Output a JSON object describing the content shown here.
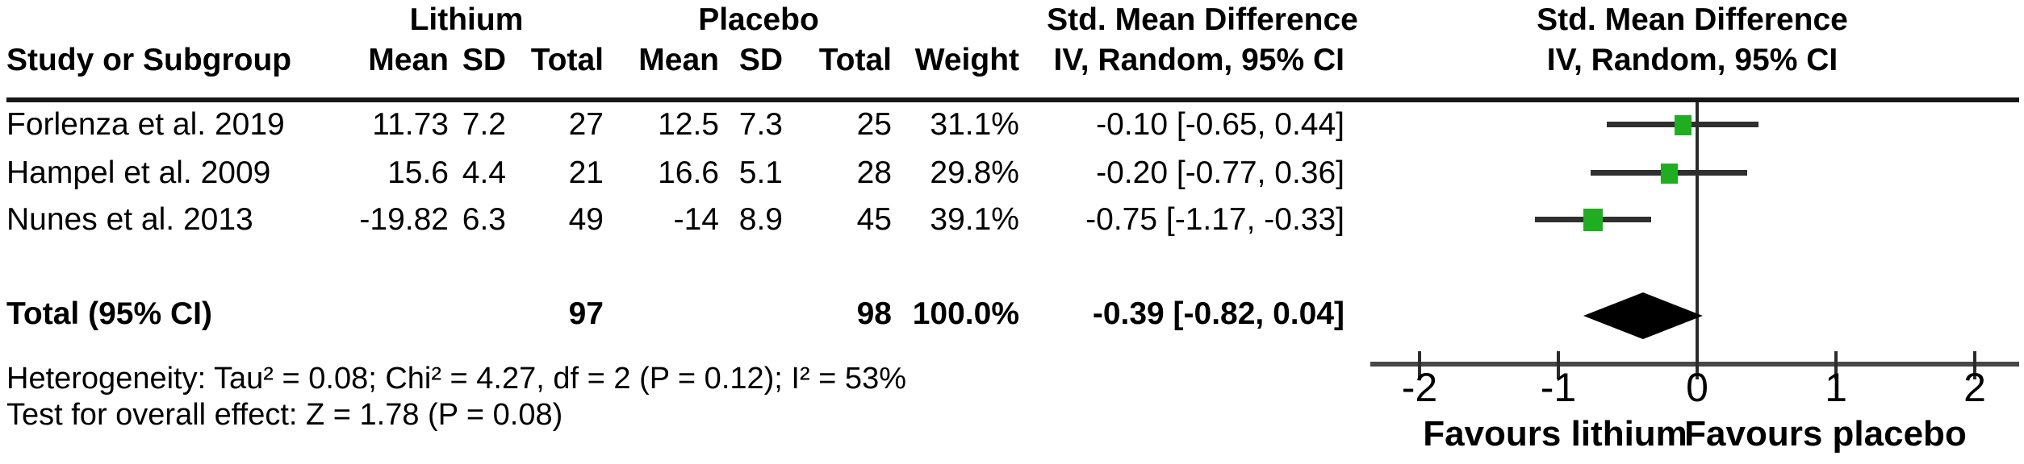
{
  "table": {
    "group_headers": {
      "lithium": "Lithium",
      "placebo": "Placebo",
      "smd_table": "Std. Mean Difference",
      "smd_plot": "Std. Mean Difference"
    },
    "col_headers": {
      "study": "Study or Subgroup",
      "mean_lithium": "Mean",
      "sd_lithium": "SD",
      "total_lithium": "Total",
      "mean_placebo": "Mean",
      "sd_placebo": "SD",
      "total_placebo": "Total",
      "weight": "Weight",
      "ci_table": "IV, Random, 95% CI",
      "ci_plot": "IV, Random, 95% CI"
    },
    "rows": [
      {
        "study": "Forlenza et al. 2019",
        "lmean": "11.73",
        "lsd": "7.2",
        "ltotal": "27",
        "pmean": "12.5",
        "psd": "7.3",
        "ptotal": "25",
        "weight": "31.1%",
        "ci": "-0.10 [-0.65, 0.44]"
      },
      {
        "study": "Hampel et al. 2009",
        "lmean": "15.6",
        "lsd": "4.4",
        "ltotal": "21",
        "pmean": "16.6",
        "psd": "5.1",
        "ptotal": "28",
        "weight": "29.8%",
        "ci": "-0.20 [-0.77, 0.36]"
      },
      {
        "study": "Nunes et al. 2013",
        "lmean": "-19.82",
        "lsd": "6.3",
        "ltotal": "49",
        "pmean": "-14",
        "psd": "8.9",
        "ptotal": "45",
        "weight": "39.1%",
        "ci": "-0.75 [-1.17, -0.33]"
      }
    ],
    "total_row": {
      "label": "Total (95% CI)",
      "lithium_total": "97",
      "placebo_total": "98",
      "weight": "100.0%",
      "ci": "-0.39 [-0.82, 0.04]"
    },
    "heterogeneity": "Heterogeneity: Tau² = 0.08; Chi² = 4.27, df = 2 (P = 0.12); I² = 53%",
    "overall_effect": "Test for overall effect: Z = 1.78 (P = 0.08)"
  },
  "chart_data": {
    "type": "forest",
    "xlabel_left": "Favours lithium",
    "xlabel_right": "Favours placebo",
    "axis_ticks": [
      -2,
      -1,
      0,
      1,
      2
    ],
    "xlim": [
      -2.35,
      2.32
    ],
    "studies": [
      {
        "name": "Forlenza et al. 2019",
        "est": -0.1,
        "lo": -0.65,
        "hi": 0.44,
        "weight": 31.1
      },
      {
        "name": "Hampel et al. 2009",
        "est": -0.2,
        "lo": -0.77,
        "hi": 0.36,
        "weight": 29.8
      },
      {
        "name": "Nunes et al. 2013",
        "est": -0.75,
        "lo": -1.17,
        "hi": -0.33,
        "weight": 39.1
      }
    ],
    "total": {
      "est": -0.39,
      "lo": -0.82,
      "hi": 0.04
    },
    "marker_color": "#21ad21",
    "line_color": "#2f2f2f",
    "diamond_color": "#000000"
  }
}
